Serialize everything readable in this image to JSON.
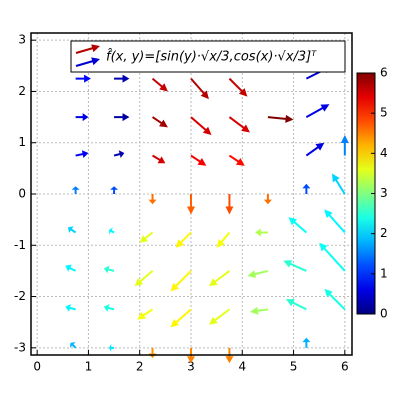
{
  "chart_data": {
    "type": "quiver",
    "legend_label": "f̂(x, y)=[sin(y)·√x/3,cos(x)·√x/3]ᵀ",
    "legend_position": "upper right",
    "colormap": "jet",
    "x": [
      0.75,
      1.5,
      2.25,
      3,
      3.75,
      5.25,
      0.75,
      1.5,
      2.25,
      3,
      3.75,
      4.5,
      5.25,
      0.75,
      1.5,
      2.25,
      3,
      3.75,
      5.25,
      6,
      0.75,
      1.5,
      2.25,
      3,
      3.75,
      4.5,
      5.25,
      6,
      0.75,
      1.5,
      2.25,
      3,
      3.75,
      4.5,
      5.25,
      6,
      0.75,
      1.5,
      2.25,
      3,
      3.75,
      4.5,
      5.25,
      6,
      0.75,
      1.5,
      2.25,
      3,
      3.75,
      4.5,
      5.25,
      6,
      0.75,
      1.5,
      2.25,
      3,
      3.75,
      5.25
    ],
    "y": [
      2.25,
      2.25,
      2.25,
      2.25,
      2.25,
      2.25,
      1.5,
      1.5,
      1.5,
      1.5,
      1.5,
      1.5,
      1.5,
      0.75,
      0.75,
      0.75,
      0.75,
      0.75,
      0.75,
      0.75,
      0,
      0,
      0,
      0,
      0,
      0,
      0,
      0,
      -0.75,
      -0.75,
      -0.75,
      -0.75,
      -0.75,
      -0.75,
      -0.75,
      -0.75,
      -1.5,
      -1.5,
      -1.5,
      -1.5,
      -1.5,
      -1.5,
      -1.5,
      -1.5,
      -2.25,
      -2.25,
      -2.25,
      -2.25,
      -2.25,
      -2.25,
      -2.25,
      -2.25,
      -3,
      -3,
      -3,
      -3,
      -3,
      -3
    ],
    "u": [
      0.3,
      0.3,
      0.3,
      0.35,
      0.35,
      0.5,
      0.25,
      0.3,
      0.3,
      0.4,
      0.4,
      0.5,
      0.45,
      0.25,
      0.2,
      0.25,
      0.3,
      0.3,
      0.35,
      0,
      0,
      0,
      0,
      0,
      0,
      0,
      0,
      -0.25,
      -0.15,
      -0.1,
      -0.25,
      -0.3,
      -0.25,
      -0.25,
      -0.35,
      -0.4,
      -0.2,
      -0.2,
      -0.35,
      -0.4,
      -0.4,
      -0.4,
      -0.45,
      -0.5,
      -0.2,
      -0.2,
      -0.3,
      -0.4,
      -0.4,
      -0.35,
      -0.4,
      -0.4,
      -0.1,
      -0.1,
      0,
      0,
      0,
      0
    ],
    "v": [
      0,
      0,
      -0.25,
      -0.4,
      -0.35,
      0.25,
      0,
      0,
      -0.2,
      -0.35,
      -0.3,
      -0.05,
      0.25,
      0.05,
      0.05,
      -0.15,
      -0.2,
      -0.2,
      0.25,
      0.4,
      0.15,
      0.15,
      -0.2,
      -0.4,
      -0.4,
      -0.2,
      0.2,
      0.4,
      0.1,
      0.05,
      -0.2,
      -0.3,
      -0.3,
      0,
      0.3,
      0.45,
      0.1,
      0.05,
      -0.3,
      -0.4,
      -0.3,
      -0.1,
      0.2,
      0.55,
      0.05,
      0.05,
      -0.2,
      -0.35,
      -0.3,
      -0.05,
      0.2,
      0.4,
      0.1,
      0,
      -0.2,
      -0.3,
      -0.3,
      0.2
    ],
    "magnitude": [
      0.8,
      0.3,
      5.6,
      5.7,
      5.6,
      0.5,
      0.6,
      0.2,
      5.8,
      5.5,
      5.5,
      6,
      0.6,
      0.7,
      0.3,
      5.5,
      5.3,
      5.2,
      0.6,
      1.5,
      1.5,
      1.2,
      4.6,
      4.7,
      4.8,
      4.6,
      1.2,
      2,
      2,
      2.2,
      3.6,
      3.8,
      3.7,
      3.3,
      2.3,
      2.2,
      2.2,
      2.5,
      3.6,
      3.8,
      3.6,
      3.2,
      2.5,
      2.3,
      2.2,
      2.4,
      3.7,
      3.8,
      3.6,
      3.2,
      2.5,
      2.4,
      1.8,
      2.1,
      4.4,
      4.5,
      4.5,
      1.8
    ],
    "xlim": [
      -0.12,
      6.14
    ],
    "ylim": [
      -3.14,
      3.14
    ],
    "xticks": [
      0,
      1,
      2,
      3,
      4,
      5,
      6
    ],
    "yticks": [
      -3,
      -2,
      -1,
      0,
      1,
      2,
      3
    ],
    "clim": [
      0,
      6
    ],
    "cticks": [
      0,
      1,
      2,
      3,
      4,
      5,
      6
    ],
    "grid": true
  }
}
